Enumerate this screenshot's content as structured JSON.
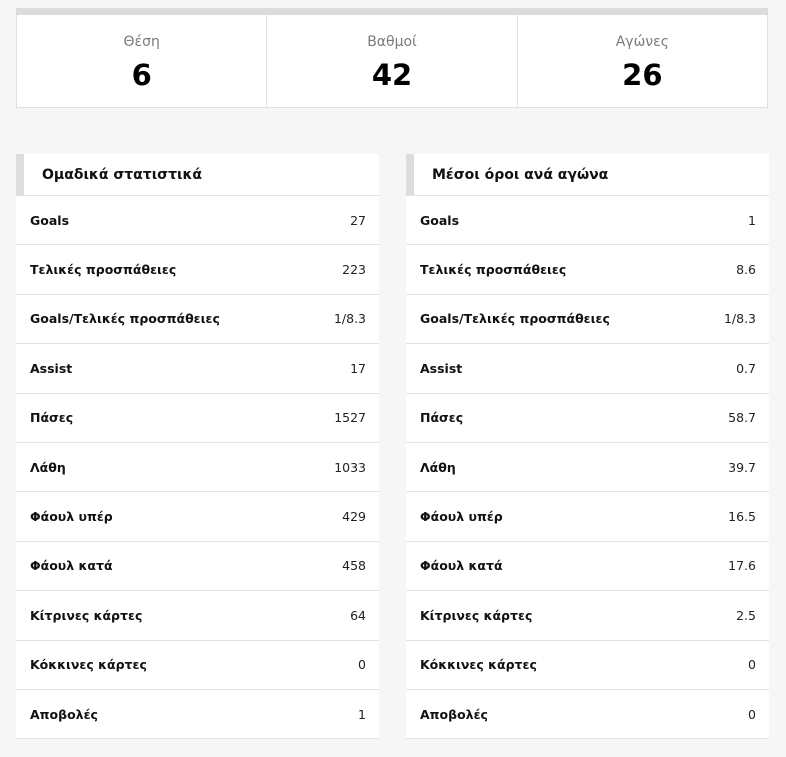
{
  "summary": {
    "cells": [
      {
        "label": "Θέση",
        "value": "6"
      },
      {
        "label": "Βαθμοί",
        "value": "42"
      },
      {
        "label": "Αγώνες",
        "value": "26"
      }
    ]
  },
  "team_stats": {
    "title": "Ομαδικά στατιστικά",
    "rows": [
      {
        "label": "Goals",
        "value": "27"
      },
      {
        "label": "Τελικές προσπάθειες",
        "value": "223"
      },
      {
        "label": "Goals/Τελικές προσπάθειες",
        "value": "1/8.3"
      },
      {
        "label": "Assist",
        "value": "17"
      },
      {
        "label": "Πάσες",
        "value": "1527"
      },
      {
        "label": "Λάθη",
        "value": "1033"
      },
      {
        "label": "Φάουλ υπέρ",
        "value": "429"
      },
      {
        "label": "Φάουλ κατά",
        "value": "458"
      },
      {
        "label": "Κίτρινες κάρτες",
        "value": "64"
      },
      {
        "label": "Κόκκινες κάρτες",
        "value": "0"
      },
      {
        "label": "Αποβολές",
        "value": "1"
      }
    ]
  },
  "per_game": {
    "title": "Μέσοι όροι ανά αγώνα",
    "rows": [
      {
        "label": "Goals",
        "value": "1"
      },
      {
        "label": "Τελικές προσπάθειες",
        "value": "8.6"
      },
      {
        "label": "Goals/Τελικές προσπάθειες",
        "value": "1/8.3"
      },
      {
        "label": "Assist",
        "value": "0.7"
      },
      {
        "label": "Πάσες",
        "value": "58.7"
      },
      {
        "label": "Λάθη",
        "value": "39.7"
      },
      {
        "label": "Φάουλ υπέρ",
        "value": "16.5"
      },
      {
        "label": "Φάουλ κατά",
        "value": "17.6"
      },
      {
        "label": "Κίτρινες κάρτες",
        "value": "2.5"
      },
      {
        "label": "Κόκκινες κάρτες",
        "value": "0"
      },
      {
        "label": "Αποβολές",
        "value": "0"
      }
    ]
  }
}
